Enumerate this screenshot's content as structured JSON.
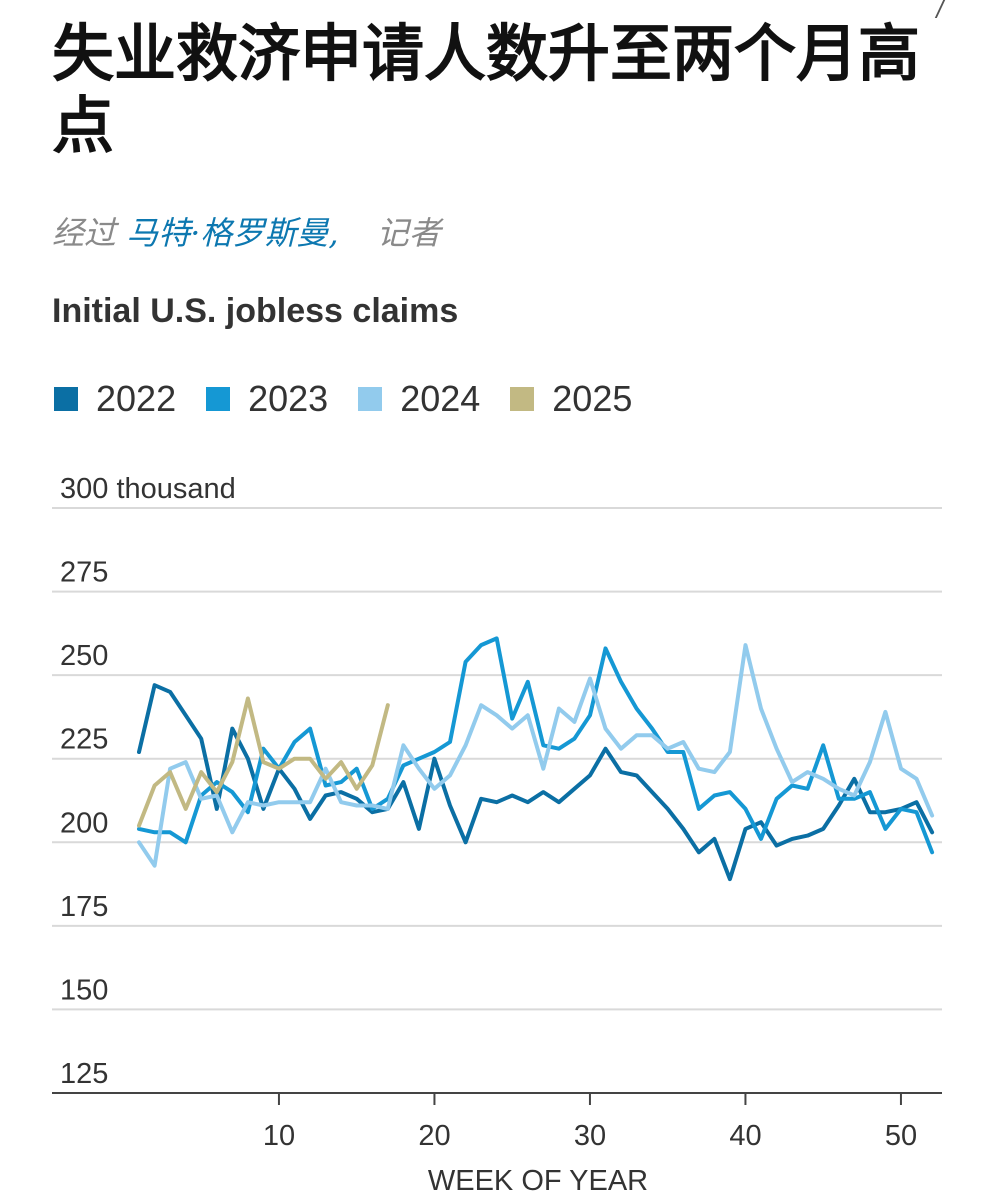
{
  "article": {
    "headline": "失业救济申请人数升至两个月高点",
    "byline_prefix": "经过",
    "author": "马特·格罗斯曼,",
    "role": "记者"
  },
  "chart_data": {
    "type": "line",
    "title": "Initial U.S. jobless claims",
    "xlabel": "WEEK OF YEAR",
    "ylabel": "",
    "ylim": [
      125,
      300
    ],
    "xlim": [
      1,
      52
    ],
    "y_ticks": [
      {
        "value": 300,
        "label": "300 thousand"
      },
      {
        "value": 275,
        "label": "275"
      },
      {
        "value": 250,
        "label": "250"
      },
      {
        "value": 225,
        "label": "225"
      },
      {
        "value": 200,
        "label": "200"
      },
      {
        "value": 175,
        "label": "175"
      },
      {
        "value": 150,
        "label": "150"
      },
      {
        "value": 125,
        "label": "125"
      }
    ],
    "x_ticks": [
      10,
      20,
      30,
      40,
      50
    ],
    "grid": "horizontal",
    "legend_position": "top-left",
    "series": [
      {
        "name": "2022",
        "color": "#0b6fa4",
        "x": [
          1,
          2,
          3,
          4,
          5,
          6,
          7,
          8,
          9,
          10,
          11,
          12,
          13,
          14,
          15,
          16,
          17,
          18,
          19,
          20,
          21,
          22,
          23,
          24,
          25,
          26,
          27,
          28,
          29,
          30,
          31,
          32,
          33,
          34,
          35,
          36,
          37,
          38,
          39,
          40,
          41,
          42,
          43,
          44,
          45,
          46,
          47,
          48,
          49,
          50,
          51,
          52
        ],
        "values": [
          227,
          247,
          245,
          238,
          231,
          210,
          234,
          225,
          210,
          222,
          216,
          207,
          214,
          215,
          213,
          209,
          210,
          218,
          204,
          225,
          211,
          200,
          213,
          212,
          214,
          212,
          215,
          212,
          216,
          220,
          228,
          221,
          220,
          215,
          210,
          204,
          197,
          201,
          189,
          204,
          206,
          199,
          201,
          202,
          204,
          211,
          219,
          209,
          209,
          210,
          212,
          203
        ]
      },
      {
        "name": "2023",
        "color": "#1598d4",
        "x": [
          1,
          2,
          3,
          4,
          5,
          6,
          7,
          8,
          9,
          10,
          11,
          12,
          13,
          14,
          15,
          16,
          17,
          18,
          19,
          20,
          21,
          22,
          23,
          24,
          25,
          26,
          27,
          28,
          29,
          30,
          31,
          32,
          33,
          34,
          35,
          36,
          37,
          38,
          39,
          40,
          41,
          42,
          43,
          44,
          45,
          46,
          47,
          48,
          49,
          50,
          51,
          52
        ],
        "values": [
          204,
          203,
          203,
          200,
          214,
          218,
          215,
          209,
          228,
          222,
          230,
          234,
          217,
          218,
          222,
          210,
          213,
          223,
          225,
          227,
          230,
          254,
          259,
          261,
          237,
          248,
          229,
          228,
          231,
          238,
          258,
          248,
          240,
          234,
          227,
          227,
          210,
          214,
          215,
          210,
          201,
          213,
          217,
          216,
          229,
          213,
          213,
          215,
          204,
          210,
          209,
          197
        ]
      },
      {
        "name": "2024",
        "color": "#92cbed",
        "x": [
          1,
          2,
          3,
          4,
          5,
          6,
          7,
          8,
          9,
          10,
          11,
          12,
          13,
          14,
          15,
          16,
          17,
          18,
          19,
          20,
          21,
          22,
          23,
          24,
          25,
          26,
          27,
          28,
          29,
          30,
          31,
          32,
          33,
          34,
          35,
          36,
          37,
          38,
          39,
          40,
          41,
          42,
          43,
          44,
          45,
          46,
          47,
          48,
          49,
          50,
          51,
          52
        ],
        "values": [
          200,
          193,
          222,
          224,
          213,
          214,
          203,
          212,
          211,
          212,
          212,
          212,
          222,
          212,
          211,
          211,
          210,
          229,
          222,
          216,
          220,
          229,
          241,
          238,
          234,
          238,
          222,
          240,
          236,
          249,
          234,
          228,
          232,
          232,
          228,
          230,
          222,
          221,
          227,
          259,
          240,
          228,
          218,
          221,
          219,
          216,
          214,
          224,
          239,
          222,
          219,
          208
        ]
      },
      {
        "name": "2025",
        "color": "#c2b983",
        "x": [
          1,
          2,
          3,
          4,
          5,
          6,
          7,
          8,
          9,
          10,
          11,
          12,
          13,
          14,
          15,
          16,
          17
        ],
        "values": [
          205,
          217,
          221,
          210,
          221,
          215,
          224,
          243,
          224,
          222,
          225,
          225,
          219,
          224,
          216,
          223,
          241
        ]
      }
    ]
  }
}
